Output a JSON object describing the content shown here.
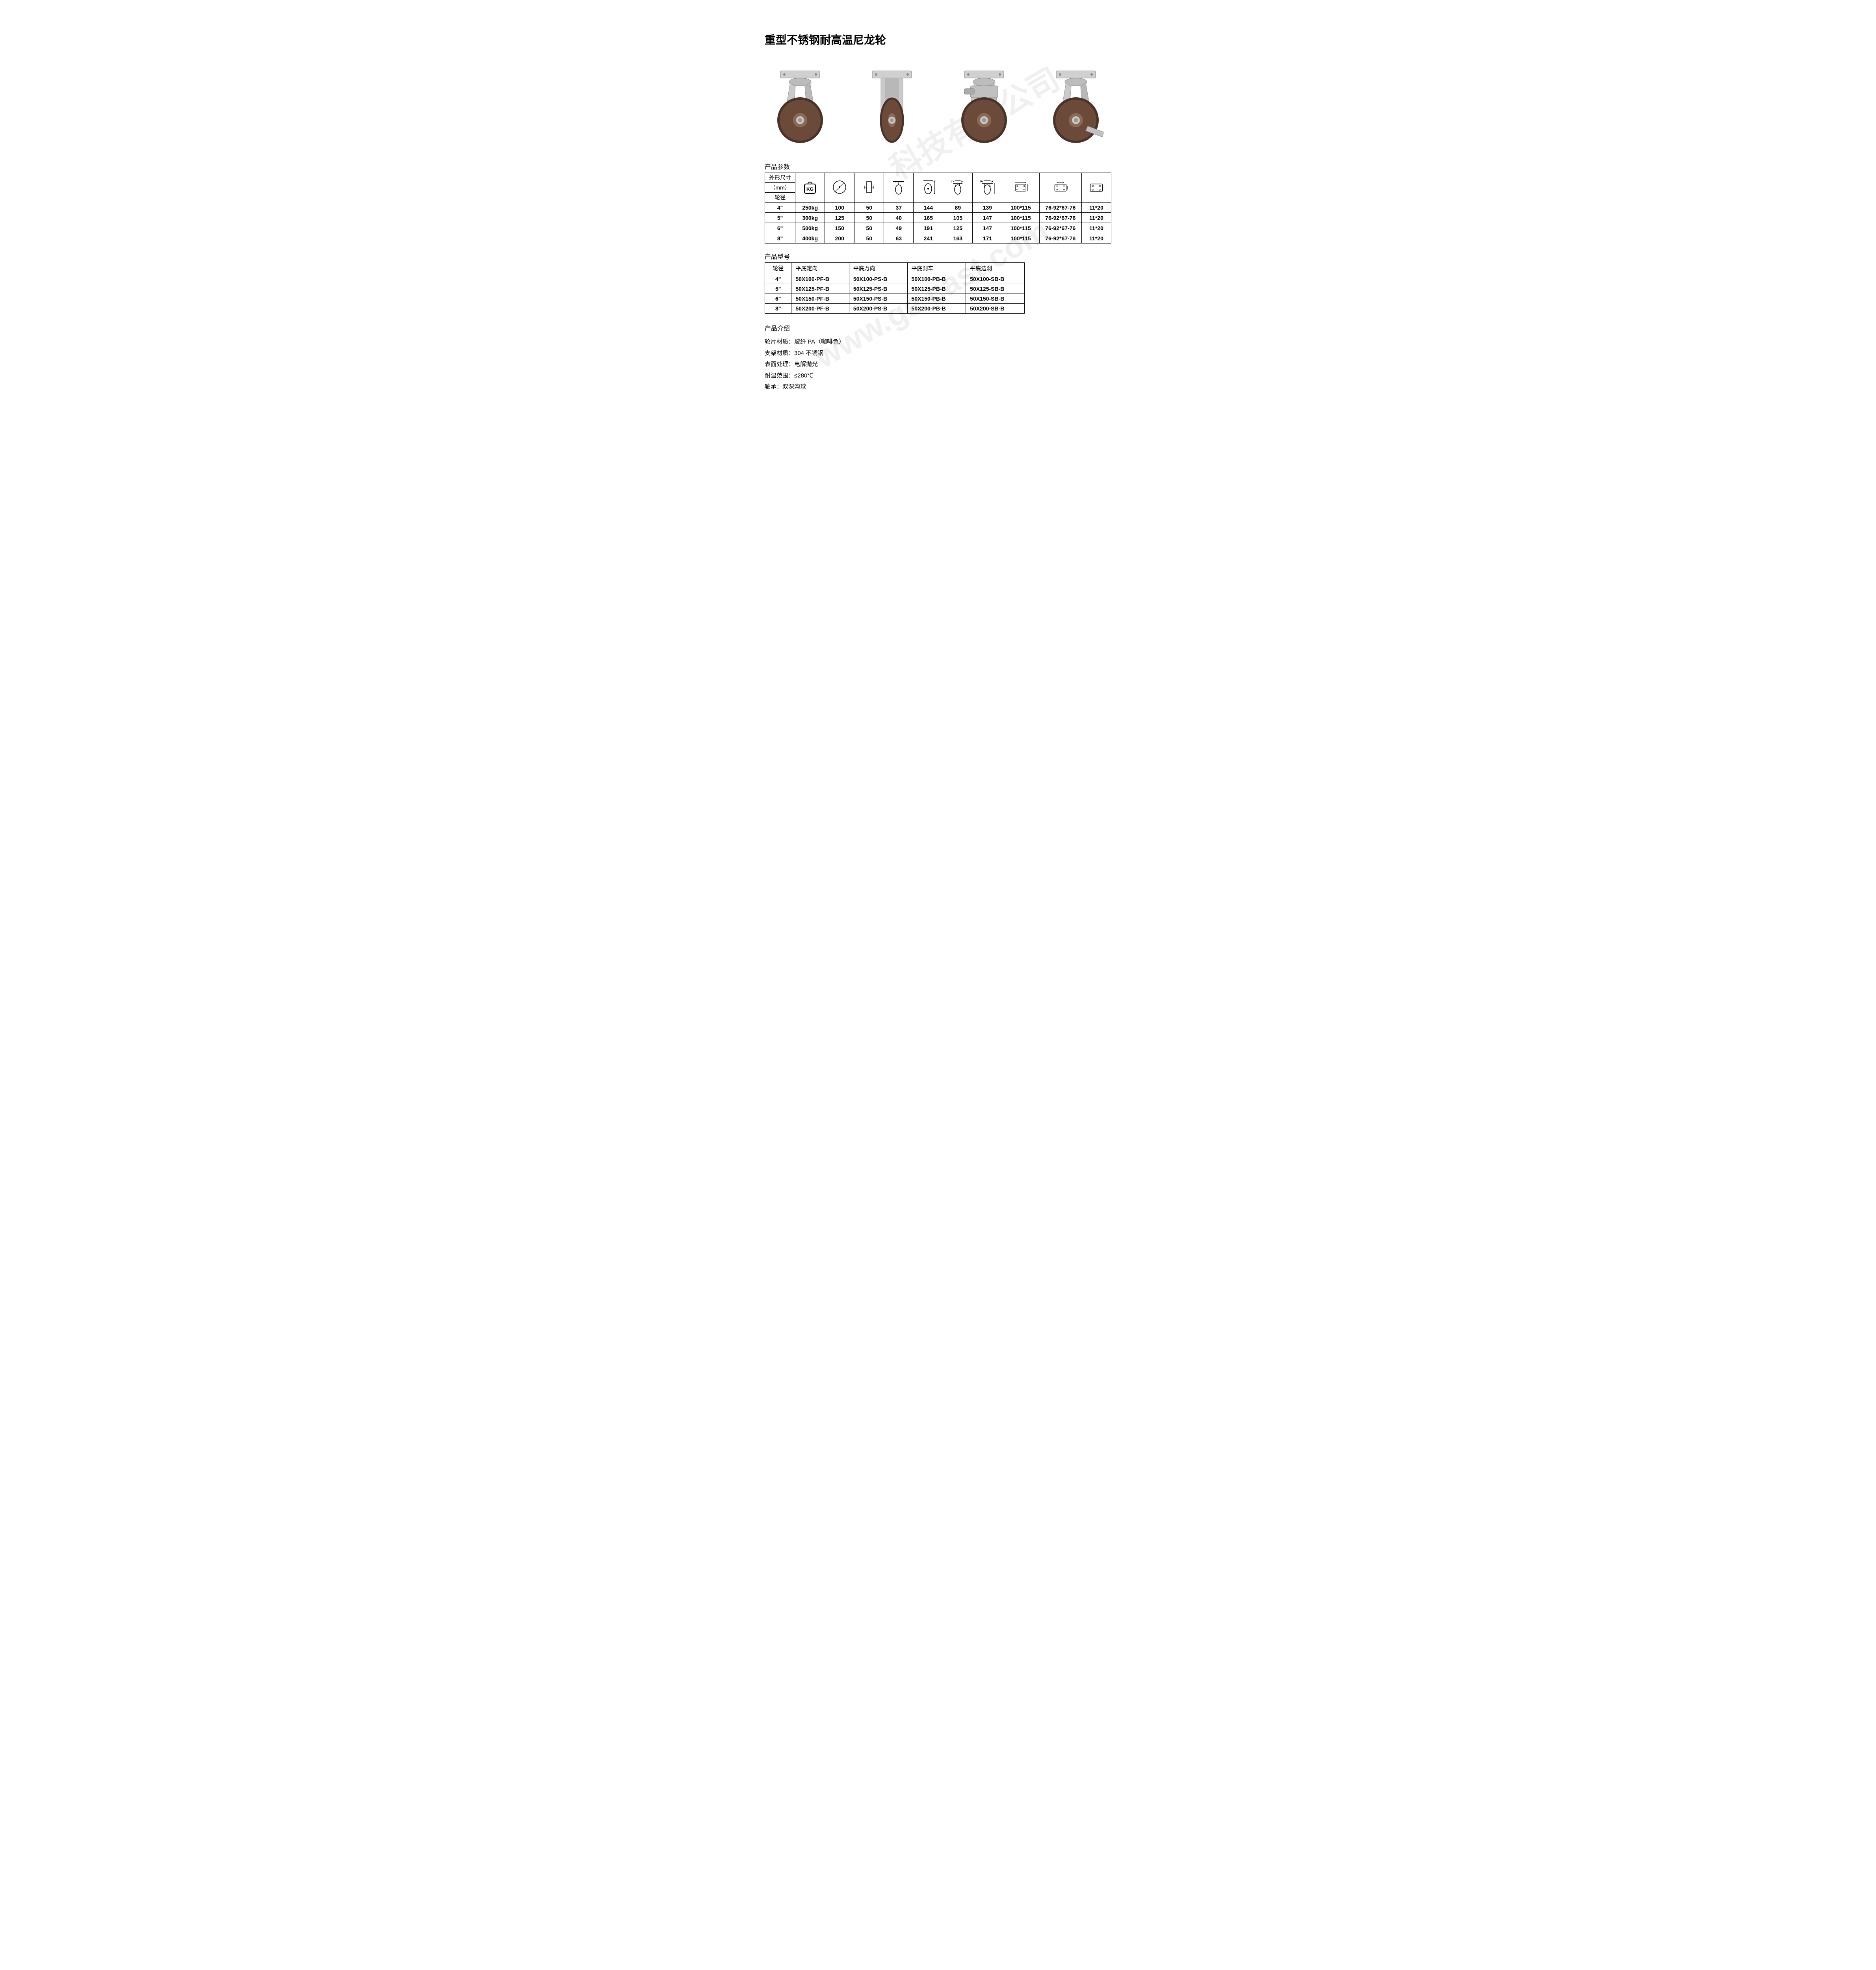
{
  "title": "重型不锈钢耐高温尼龙轮",
  "watermark1": "科技有限公司",
  "watermark2": "www.ge   cast.com",
  "section_params_title": "产品参数",
  "section_models_title": "产品型号",
  "section_intro_title": "产品介绍",
  "params_header_stack": {
    "l1": "外形尺寸",
    "l2": "（mm）",
    "l3": "轮径"
  },
  "params_columns_icons": [
    "kg",
    "wheel-dia",
    "wheel-width",
    "caster-offset",
    "caster-h",
    "swivel-r",
    "swivel-h",
    "plate",
    "bolt-pattern",
    "bolt-hole"
  ],
  "params_rows": [
    {
      "dia": "4\"",
      "vals": [
        "250kg",
        "100",
        "50",
        "37",
        "144",
        "89",
        "139",
        "100*115",
        "76-92*67-76",
        "11*20"
      ]
    },
    {
      "dia": "5\"",
      "vals": [
        "300kg",
        "125",
        "50",
        "40",
        "165",
        "105",
        "147",
        "100*115",
        "76-92*67-76",
        "11*20"
      ]
    },
    {
      "dia": "6\"",
      "vals": [
        "500kg",
        "150",
        "50",
        "49",
        "191",
        "125",
        "147",
        "100*115",
        "76-92*67-76",
        "11*20"
      ]
    },
    {
      "dia": "8\"",
      "vals": [
        "400kg",
        "200",
        "50",
        "63",
        "241",
        "163",
        "171",
        "100*115",
        "76-92*67-76",
        "11*20"
      ]
    }
  ],
  "models_header": [
    "轮径",
    "平底定向",
    "平底万向",
    "平底刹车",
    "平底边刹"
  ],
  "models_rows": [
    [
      "4\"",
      "50X100-PF-B",
      "50X100-PS-B",
      "50X100-PB-B",
      "50X100-SB-B"
    ],
    [
      "5\"",
      "50X125-PF-B",
      "50X125-PS-B",
      "50X125-PB-B",
      "50X125-SB-B"
    ],
    [
      "6\"",
      "50X150-PF-B",
      "50X150-PS-B",
      "50X150-PB-B",
      "50X150-SB-B"
    ],
    [
      "8\"",
      "50X200-PF-B",
      "50X200-PS-B",
      "50X200-PB-B",
      "50X200-SB-B"
    ]
  ],
  "intro_lines": [
    "轮片材质：玻纤 PA（咖啡色）",
    "支架材质：304 不锈钢",
    "表面处理：电解抛光",
    "耐温范围：≤280℃",
    "轴承：双深沟球"
  ],
  "colors": {
    "wheel": "#6b4a3a",
    "wheel_dark": "#4a3228",
    "steel": "#c8c8c8",
    "steel_dark": "#9a9a9a",
    "border": "#000000",
    "text": "#000000",
    "bg": "#ffffff"
  }
}
